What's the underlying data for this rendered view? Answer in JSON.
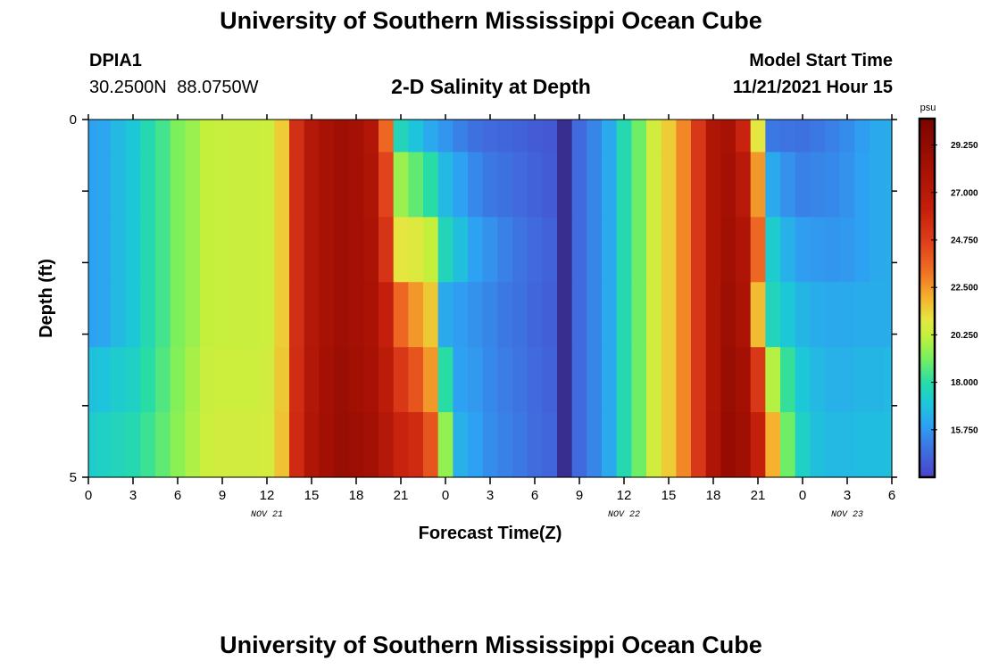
{
  "header": {
    "title": "University of Southern Mississippi Ocean Cube",
    "station": "DPIA1",
    "coordinates": "30.2500N  88.0750W",
    "subtitle": "2-D Salinity at Depth",
    "model_start_label": "Model Start Time",
    "model_start_value": "11/21/2021 Hour 15"
  },
  "footer": {
    "title": "University of Southern Mississippi Ocean Cube"
  },
  "chart_data": {
    "type": "heatmap",
    "title": "2-D Salinity at Depth",
    "xlabel": "Forecast Time(Z)",
    "ylabel": "Depth (ft)",
    "x_tick_labels": [
      "0",
      "3",
      "6",
      "9",
      "12",
      "15",
      "18",
      "21",
      "0",
      "3",
      "6",
      "9",
      "12",
      "15",
      "18",
      "21",
      "0",
      "3",
      "6"
    ],
    "x_range_hours": [
      0,
      54
    ],
    "date_labels": [
      {
        "text": "NOV 21",
        "hour": 12
      },
      {
        "text": "NOV 22",
        "hour": 36
      },
      {
        "text": "NOV 23",
        "hour": 51
      }
    ],
    "y_tick_labels": [
      "0",
      "5"
    ],
    "y_range_ft": [
      0,
      5
    ],
    "depth_layers": 5,
    "colorbar": {
      "unit": "psu",
      "min": 13.5,
      "max": 30.5,
      "labels": [
        "29.250",
        "27.000",
        "24.750",
        "22.500",
        "20.250",
        "18.000",
        "15.750"
      ],
      "label_values": [
        29.25,
        27.0,
        24.75,
        22.5,
        20.25,
        18.0,
        15.75
      ]
    },
    "colormap": [
      {
        "v": 13.5,
        "c": "#4a42c8"
      },
      {
        "v": 15.0,
        "c": "#3c78e4"
      },
      {
        "v": 16.0,
        "c": "#2ea2f2"
      },
      {
        "v": 17.0,
        "c": "#1cc8d8"
      },
      {
        "v": 18.0,
        "c": "#28dca6"
      },
      {
        "v": 19.2,
        "c": "#7cf05a"
      },
      {
        "v": 20.2,
        "c": "#c4f03c"
      },
      {
        "v": 21.0,
        "c": "#e6e640"
      },
      {
        "v": 22.0,
        "c": "#f4b22e"
      },
      {
        "v": 23.2,
        "c": "#f07224"
      },
      {
        "v": 24.6,
        "c": "#e0401c"
      },
      {
        "v": 26.2,
        "c": "#c41f0c"
      },
      {
        "v": 28.0,
        "c": "#a81204"
      },
      {
        "v": 30.5,
        "c": "#7a0400"
      }
    ],
    "time_hours": [
      0,
      1,
      2,
      3,
      4,
      5,
      6,
      7,
      8,
      9,
      10,
      11,
      12,
      13,
      14,
      15,
      16,
      17,
      18,
      19,
      20,
      21,
      22,
      23,
      24,
      25,
      26,
      27,
      28,
      29,
      30,
      31,
      32,
      33,
      34,
      35,
      36,
      37,
      38,
      39,
      40,
      41,
      42,
      43,
      44,
      45,
      46,
      47,
      48,
      49,
      50,
      51,
      52,
      53,
      54
    ],
    "salinity_by_layer": [
      [
        16.0,
        16.1,
        16.6,
        17.0,
        17.8,
        18.4,
        19.2,
        19.6,
        20.2,
        20.3,
        20.3,
        20.3,
        20.4,
        21.5,
        25.4,
        27.2,
        28.0,
        28.5,
        28.2,
        27.4,
        23.5,
        17.6,
        16.9,
        16.2,
        15.7,
        15.2,
        14.8,
        14.6,
        14.5,
        14.4,
        14.2,
        14.1,
        12.8,
        14.6,
        15.3,
        16.2,
        17.8,
        19.0,
        20.5,
        21.5,
        22.8,
        25.0,
        27.5,
        28.0,
        26.0,
        21.0,
        15.0,
        14.9,
        14.8,
        15.0,
        15.2,
        15.5,
        15.9,
        16.2,
        16.3
      ],
      [
        16.0,
        16.1,
        16.6,
        17.0,
        17.8,
        18.4,
        19.2,
        19.6,
        20.2,
        20.3,
        20.3,
        20.3,
        20.4,
        21.5,
        25.4,
        27.2,
        28.0,
        28.5,
        28.2,
        27.6,
        24.5,
        19.6,
        18.8,
        18.0,
        16.6,
        16.0,
        15.4,
        15.0,
        14.8,
        14.6,
        14.4,
        14.2,
        12.8,
        14.6,
        15.3,
        16.2,
        17.8,
        19.0,
        20.5,
        21.5,
        22.8,
        25.0,
        27.5,
        28.2,
        27.0,
        22.5,
        16.2,
        15.6,
        15.2,
        15.3,
        15.4,
        15.6,
        16.0,
        16.2,
        16.3
      ],
      [
        16.0,
        16.1,
        16.6,
        17.0,
        17.8,
        18.4,
        19.2,
        19.6,
        20.2,
        20.3,
        20.3,
        20.3,
        20.4,
        21.5,
        25.4,
        27.2,
        28.0,
        28.5,
        28.2,
        27.8,
        25.2,
        21.0,
        20.8,
        20.2,
        17.6,
        16.8,
        16.0,
        15.6,
        15.2,
        14.9,
        14.6,
        14.4,
        12.8,
        14.6,
        15.3,
        16.2,
        17.8,
        19.0,
        20.5,
        21.5,
        22.8,
        25.0,
        27.5,
        28.4,
        27.6,
        23.5,
        17.2,
        16.4,
        15.9,
        15.8,
        15.7,
        15.8,
        16.0,
        16.2,
        16.3
      ],
      [
        16.0,
        16.1,
        16.6,
        17.0,
        17.8,
        18.4,
        19.2,
        19.6,
        20.2,
        20.3,
        20.3,
        20.3,
        20.4,
        21.5,
        25.4,
        27.2,
        28.0,
        28.5,
        28.2,
        27.9,
        26.2,
        23.5,
        22.5,
        21.6,
        16.2,
        15.9,
        15.6,
        15.3,
        15.0,
        14.8,
        14.5,
        14.3,
        12.8,
        14.6,
        15.3,
        16.2,
        17.8,
        19.0,
        20.5,
        21.5,
        22.8,
        25.0,
        27.5,
        28.6,
        27.8,
        21.8,
        17.6,
        17.0,
        16.5,
        16.3,
        16.2,
        16.2,
        16.3,
        16.3,
        16.3
      ],
      [
        16.8,
        16.9,
        17.2,
        17.4,
        18.0,
        18.6,
        19.3,
        19.8,
        20.3,
        20.4,
        20.4,
        20.4,
        20.5,
        21.6,
        25.5,
        27.3,
        28.2,
        28.7,
        28.4,
        28.0,
        26.8,
        25.0,
        24.0,
        22.5,
        18.0,
        16.0,
        15.8,
        15.4,
        15.1,
        14.9,
        14.6,
        14.4,
        12.8,
        14.6,
        15.3,
        16.2,
        17.8,
        19.0,
        20.5,
        21.5,
        22.8,
        25.0,
        27.5,
        28.8,
        28.2,
        25.0,
        20.0,
        18.2,
        17.0,
        16.6,
        16.4,
        16.4,
        16.5,
        16.5,
        16.6
      ],
      [
        17.2,
        17.4,
        17.6,
        17.8,
        18.3,
        18.8,
        19.4,
        19.9,
        20.4,
        20.5,
        20.5,
        20.5,
        20.6,
        21.7,
        25.6,
        27.5,
        28.4,
        28.8,
        28.6,
        28.2,
        27.2,
        26.0,
        25.6,
        24.0,
        19.5,
        16.4,
        16.0,
        15.5,
        15.2,
        15.0,
        14.7,
        14.5,
        12.8,
        14.6,
        15.3,
        16.2,
        17.8,
        19.0,
        20.5,
        21.5,
        22.8,
        25.0,
        27.6,
        29.0,
        28.5,
        26.2,
        22.0,
        19.0,
        17.4,
        16.8,
        16.6,
        16.6,
        16.7,
        16.7,
        16.8
      ]
    ]
  }
}
